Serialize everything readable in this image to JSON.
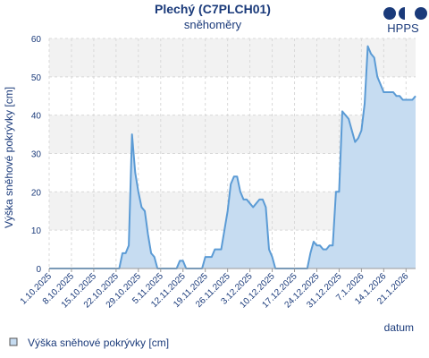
{
  "chart_data": {
    "type": "area",
    "title": "Plechý (C7PLCH01)",
    "subtitle": "sněhoměry",
    "xlabel": "datum",
    "ylabel": "Výška sněhové pokrývky [cm]",
    "ylim": [
      0,
      60
    ],
    "yticks": [
      0,
      10,
      20,
      30,
      40,
      50,
      60
    ],
    "x_tick_labels": [
      "1.10.2025",
      "8.10.2025",
      "15.10.2025",
      "22.10.2025",
      "29.10.2025",
      "5.11.2025",
      "12.11.2025",
      "19.11.2025",
      "26.11.2025",
      "3.12.2025",
      "10.12.2025",
      "17.12.2025",
      "24.12.2025",
      "31.12.2025",
      "7.1.2026",
      "14.1.2026",
      "21.1.2026"
    ],
    "grid": true,
    "legend_position": "bottom-left",
    "series": [
      {
        "name": "Výška sněhové pokrývky [cm]",
        "color": "#5b9bd5",
        "fill": "#c6dcf1",
        "points": [
          [
            "2025-10-01",
            0
          ],
          [
            "2025-10-23",
            0
          ],
          [
            "2025-10-24",
            4
          ],
          [
            "2025-10-25",
            4
          ],
          [
            "2025-10-26",
            6
          ],
          [
            "2025-10-27",
            35
          ],
          [
            "2025-10-28",
            25
          ],
          [
            "2025-10-29",
            20
          ],
          [
            "2025-10-30",
            16
          ],
          [
            "2025-10-31",
            15
          ],
          [
            "2025-11-01",
            9
          ],
          [
            "2025-11-02",
            4
          ],
          [
            "2025-11-03",
            3
          ],
          [
            "2025-11-04",
            0
          ],
          [
            "2025-11-10",
            0
          ],
          [
            "2025-11-11",
            2
          ],
          [
            "2025-11-12",
            2
          ],
          [
            "2025-11-13",
            0
          ],
          [
            "2025-11-18",
            0
          ],
          [
            "2025-11-19",
            3
          ],
          [
            "2025-11-21",
            3
          ],
          [
            "2025-11-22",
            5
          ],
          [
            "2025-11-24",
            5
          ],
          [
            "2025-11-25",
            10
          ],
          [
            "2025-11-26",
            15
          ],
          [
            "2025-11-27",
            22
          ],
          [
            "2025-11-28",
            24
          ],
          [
            "2025-11-29",
            24
          ],
          [
            "2025-11-30",
            20
          ],
          [
            "2025-12-01",
            18
          ],
          [
            "2025-12-02",
            18
          ],
          [
            "2025-12-03",
            17
          ],
          [
            "2025-12-04",
            16
          ],
          [
            "2025-12-05",
            17
          ],
          [
            "2025-12-06",
            18
          ],
          [
            "2025-12-07",
            18
          ],
          [
            "2025-12-08",
            16
          ],
          [
            "2025-12-09",
            5
          ],
          [
            "2025-12-10",
            3
          ],
          [
            "2025-12-11",
            0
          ],
          [
            "2025-12-21",
            0
          ],
          [
            "2025-12-22",
            4
          ],
          [
            "2025-12-23",
            7
          ],
          [
            "2025-12-24",
            6
          ],
          [
            "2025-12-25",
            6
          ],
          [
            "2025-12-26",
            5
          ],
          [
            "2025-12-27",
            5
          ],
          [
            "2025-12-28",
            6
          ],
          [
            "2025-12-29",
            6
          ],
          [
            "2025-12-30",
            20
          ],
          [
            "2025-12-31",
            20
          ],
          [
            "2026-01-01",
            41
          ],
          [
            "2026-01-02",
            40
          ],
          [
            "2026-01-03",
            39
          ],
          [
            "2026-01-04",
            36
          ],
          [
            "2026-01-05",
            33
          ],
          [
            "2026-01-06",
            34
          ],
          [
            "2026-01-07",
            36
          ],
          [
            "2026-01-08",
            43
          ],
          [
            "2026-01-09",
            58
          ],
          [
            "2026-01-10",
            56
          ],
          [
            "2026-01-11",
            55
          ],
          [
            "2026-01-12",
            50
          ],
          [
            "2026-01-13",
            48
          ],
          [
            "2026-01-14",
            46
          ],
          [
            "2026-01-17",
            46
          ],
          [
            "2026-01-18",
            45
          ],
          [
            "2026-01-19",
            45
          ],
          [
            "2026-01-20",
            44
          ],
          [
            "2026-01-23",
            44
          ],
          [
            "2026-01-24",
            45
          ]
        ]
      }
    ]
  },
  "brand": {
    "logo_text": "HPPS",
    "color": "#1a3a7a"
  },
  "colors": {
    "axis_text": "#1a3a7a",
    "grid": "#d9d9d9",
    "band": "#f2f2f2"
  }
}
